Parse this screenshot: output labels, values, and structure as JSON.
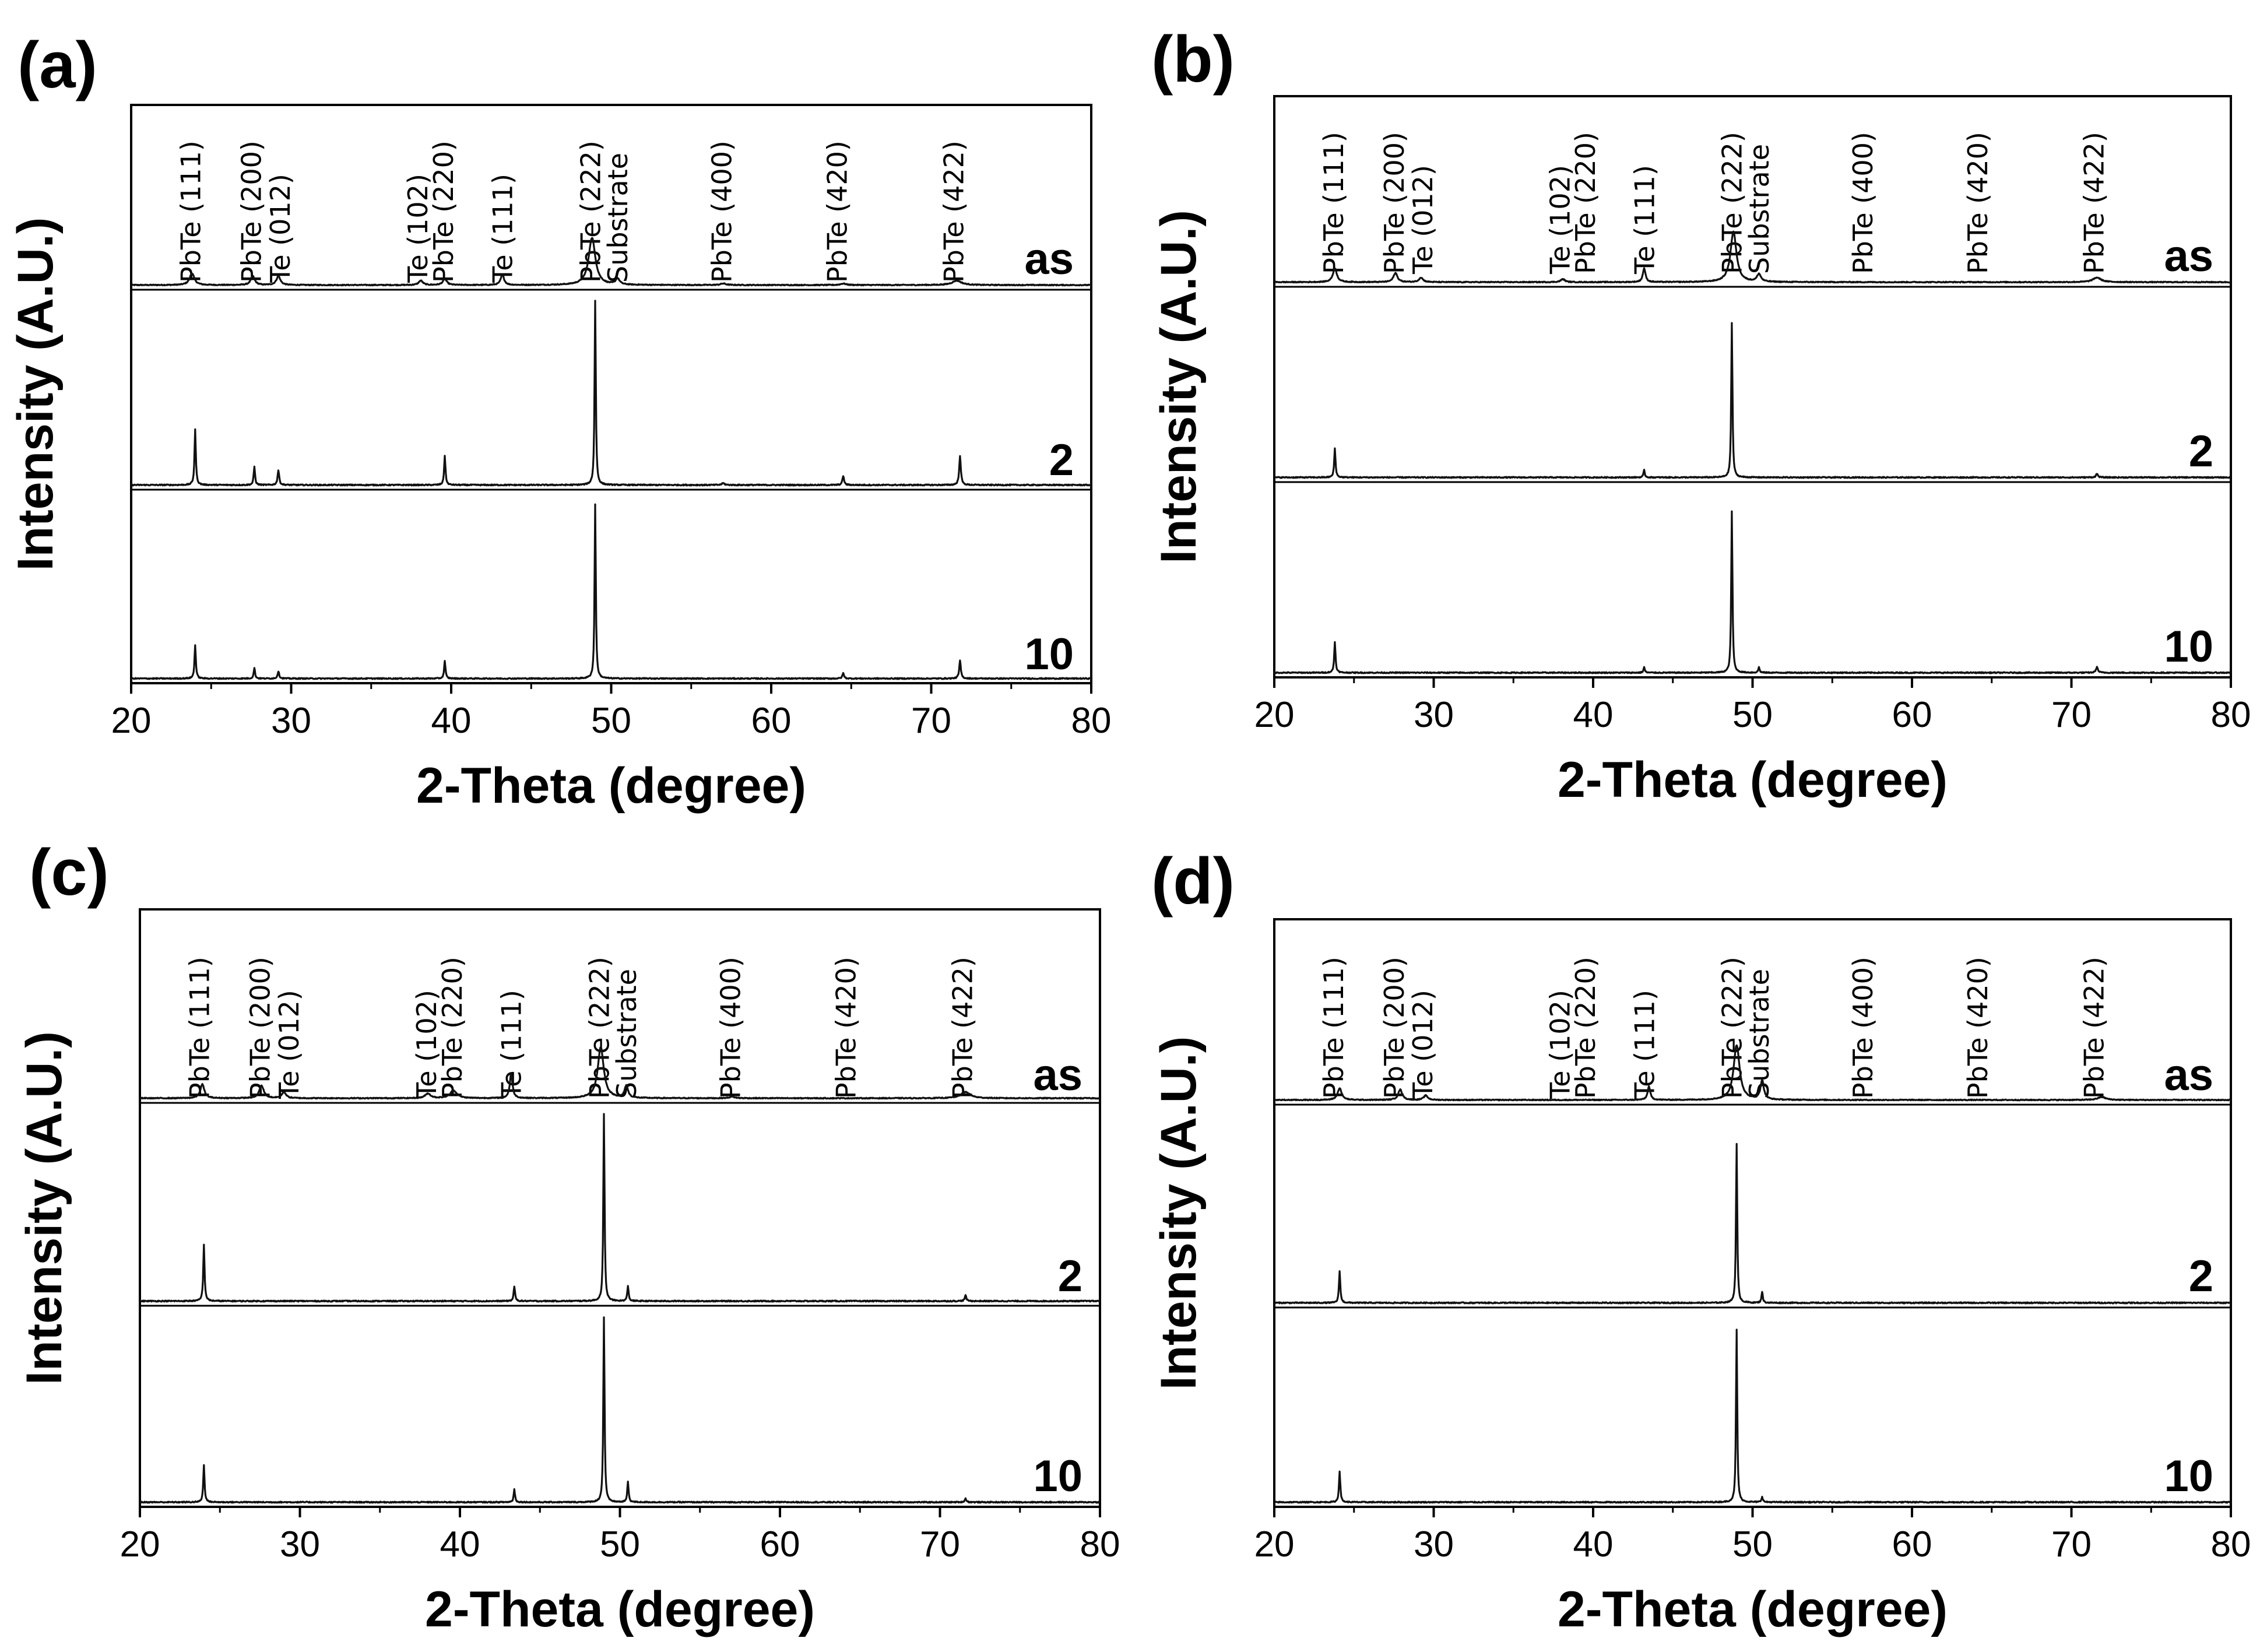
{
  "chart_data": [
    {
      "panel": "(a)",
      "type": "line",
      "xlabel": "2-Theta (degree)",
      "ylabel": "Intensity (A.U.)",
      "xlim": [
        20,
        80
      ],
      "xticks": [
        20,
        30,
        40,
        50,
        60,
        70,
        80
      ],
      "grid": false,
      "peak_labels": [
        {
          "text": "PbTe (111)",
          "x": 23.8
        },
        {
          "text": "PbTe (200)",
          "x": 27.6
        },
        {
          "text": "Te (012)",
          "x": 29.4
        },
        {
          "text": "Te (102)",
          "x": 38.0
        },
        {
          "text": "PbTe (220)",
          "x": 39.6
        },
        {
          "text": "Te (111)",
          "x": 43.3
        },
        {
          "text": "PbTe (222)",
          "x": 48.8
        },
        {
          "text": "Substrate",
          "x": 50.5
        },
        {
          "text": "PbTe (400)",
          "x": 57.0
        },
        {
          "text": "PbTe (420)",
          "x": 64.2
        },
        {
          "text": "PbTe (422)",
          "x": 71.5
        }
      ],
      "series": [
        {
          "name": "as",
          "baseline": 0,
          "peaks": [
            {
              "x": 23.8,
              "h": 0.08,
              "w": 0.35
            },
            {
              "x": 27.6,
              "h": 0.06,
              "w": 0.3
            },
            {
              "x": 29.2,
              "h": 0.06,
              "w": 0.3
            },
            {
              "x": 38.1,
              "h": 0.03,
              "w": 0.3
            },
            {
              "x": 39.6,
              "h": 0.04,
              "w": 0.3
            },
            {
              "x": 43.2,
              "h": 0.07,
              "w": 0.25
            },
            {
              "x": 48.8,
              "h": 0.32,
              "w": 0.5
            },
            {
              "x": 50.4,
              "h": 0.04,
              "w": 0.3
            },
            {
              "x": 57.0,
              "h": 0.01,
              "w": 0.4
            },
            {
              "x": 64.5,
              "h": 0.01,
              "w": 0.4
            },
            {
              "x": 71.6,
              "h": 0.03,
              "w": 0.7
            }
          ]
        },
        {
          "name": "2",
          "baseline": 0,
          "peaks": [
            {
              "x": 24.0,
              "h": 0.3,
              "w": 0.1
            },
            {
              "x": 27.7,
              "h": 0.1,
              "w": 0.1
            },
            {
              "x": 29.2,
              "h": 0.08,
              "w": 0.12
            },
            {
              "x": 39.6,
              "h": 0.16,
              "w": 0.1
            },
            {
              "x": 49.0,
              "h": 1.0,
              "w": 0.09
            },
            {
              "x": 57.0,
              "h": 0.01,
              "w": 0.2
            },
            {
              "x": 64.5,
              "h": 0.05,
              "w": 0.12
            },
            {
              "x": 71.8,
              "h": 0.16,
              "w": 0.12
            }
          ]
        },
        {
          "name": "10",
          "baseline": 0,
          "peaks": [
            {
              "x": 24.0,
              "h": 0.19,
              "w": 0.1
            },
            {
              "x": 27.7,
              "h": 0.06,
              "w": 0.1
            },
            {
              "x": 29.2,
              "h": 0.04,
              "w": 0.12
            },
            {
              "x": 39.6,
              "h": 0.1,
              "w": 0.1
            },
            {
              "x": 49.0,
              "h": 0.98,
              "w": 0.09
            },
            {
              "x": 64.5,
              "h": 0.03,
              "w": 0.12
            },
            {
              "x": 71.8,
              "h": 0.1,
              "w": 0.12
            }
          ]
        }
      ]
    },
    {
      "panel": "(b)",
      "type": "line",
      "xlabel": "2-Theta (degree)",
      "ylabel": "Intensity (A.U.)",
      "xlim": [
        20,
        80
      ],
      "xticks": [
        20,
        30,
        40,
        50,
        60,
        70,
        80
      ],
      "grid": false,
      "peak_labels": [
        {
          "text": "PbTe (111)",
          "x": 23.8
        },
        {
          "text": "PbTe (200)",
          "x": 27.6
        },
        {
          "text": "Te (012)",
          "x": 29.4
        },
        {
          "text": "Te (102)",
          "x": 38.0
        },
        {
          "text": "PbTe (220)",
          "x": 39.6
        },
        {
          "text": "Te (111)",
          "x": 43.3
        },
        {
          "text": "PbTe (222)",
          "x": 48.8
        },
        {
          "text": "Substrate",
          "x": 50.5
        },
        {
          "text": "PbTe (400)",
          "x": 57.0
        },
        {
          "text": "PbTe (420)",
          "x": 64.2
        },
        {
          "text": "PbTe (422)",
          "x": 71.5
        }
      ],
      "series": [
        {
          "name": "as",
          "baseline": 0,
          "peaks": [
            {
              "x": 23.8,
              "h": 0.09,
              "w": 0.3
            },
            {
              "x": 27.6,
              "h": 0.06,
              "w": 0.3
            },
            {
              "x": 29.2,
              "h": 0.03,
              "w": 0.3
            },
            {
              "x": 38.1,
              "h": 0.02,
              "w": 0.3
            },
            {
              "x": 43.2,
              "h": 0.09,
              "w": 0.2
            },
            {
              "x": 48.8,
              "h": 0.33,
              "w": 0.45
            },
            {
              "x": 50.4,
              "h": 0.05,
              "w": 0.3
            },
            {
              "x": 71.6,
              "h": 0.03,
              "w": 0.6
            }
          ]
        },
        {
          "name": "2",
          "baseline": 0,
          "peaks": [
            {
              "x": 23.8,
              "h": 0.16,
              "w": 0.1
            },
            {
              "x": 43.2,
              "h": 0.04,
              "w": 0.1
            },
            {
              "x": 48.7,
              "h": 0.86,
              "w": 0.09
            },
            {
              "x": 71.6,
              "h": 0.02,
              "w": 0.15
            }
          ]
        },
        {
          "name": "10",
          "baseline": 0,
          "peaks": [
            {
              "x": 23.8,
              "h": 0.17,
              "w": 0.1
            },
            {
              "x": 43.2,
              "h": 0.03,
              "w": 0.1
            },
            {
              "x": 48.7,
              "h": 0.9,
              "w": 0.09
            },
            {
              "x": 50.4,
              "h": 0.03,
              "w": 0.1
            },
            {
              "x": 71.6,
              "h": 0.03,
              "w": 0.15
            }
          ]
        }
      ]
    },
    {
      "panel": "(c)",
      "type": "line",
      "xlabel": "2-Theta (degree)",
      "ylabel": "Intensity (A.U.)",
      "xlim": [
        20,
        80
      ],
      "xticks": [
        20,
        30,
        40,
        50,
        60,
        70,
        80
      ],
      "grid": false,
      "peak_labels": [
        {
          "text": "PbTe (111)",
          "x": 23.8
        },
        {
          "text": "PbTe (200)",
          "x": 27.6
        },
        {
          "text": "Te (012)",
          "x": 29.4
        },
        {
          "text": "Te (102)",
          "x": 38.0
        },
        {
          "text": "PbTe (220)",
          "x": 39.6
        },
        {
          "text": "Te (111)",
          "x": 43.3
        },
        {
          "text": "PbTe (222)",
          "x": 48.8
        },
        {
          "text": "Substrate",
          "x": 50.5
        },
        {
          "text": "PbTe (400)",
          "x": 57.0
        },
        {
          "text": "PbTe (420)",
          "x": 64.2
        },
        {
          "text": "PbTe (422)",
          "x": 71.5
        }
      ],
      "series": [
        {
          "name": "as",
          "baseline": 0,
          "peaks": [
            {
              "x": 23.9,
              "h": 0.09,
              "w": 0.3
            },
            {
              "x": 27.6,
              "h": 0.08,
              "w": 0.35
            },
            {
              "x": 29.0,
              "h": 0.04,
              "w": 0.3
            },
            {
              "x": 38.0,
              "h": 0.03,
              "w": 0.4
            },
            {
              "x": 39.6,
              "h": 0.05,
              "w": 0.5
            },
            {
              "x": 43.2,
              "h": 0.16,
              "w": 0.2
            },
            {
              "x": 48.8,
              "h": 0.33,
              "w": 0.45
            },
            {
              "x": 50.4,
              "h": 0.08,
              "w": 0.25
            },
            {
              "x": 57.0,
              "h": 0.01,
              "w": 0.4
            },
            {
              "x": 71.6,
              "h": 0.04,
              "w": 0.7
            }
          ]
        },
        {
          "name": "2",
          "baseline": 0,
          "peaks": [
            {
              "x": 24.0,
              "h": 0.3,
              "w": 0.1
            },
            {
              "x": 43.4,
              "h": 0.08,
              "w": 0.1
            },
            {
              "x": 49.0,
              "h": 1.0,
              "w": 0.09
            },
            {
              "x": 50.5,
              "h": 0.08,
              "w": 0.1
            },
            {
              "x": 71.6,
              "h": 0.03,
              "w": 0.12
            }
          ]
        },
        {
          "name": "10",
          "baseline": 0,
          "peaks": [
            {
              "x": 24.0,
              "h": 0.2,
              "w": 0.1
            },
            {
              "x": 43.4,
              "h": 0.07,
              "w": 0.1
            },
            {
              "x": 49.0,
              "h": 1.0,
              "w": 0.09
            },
            {
              "x": 50.5,
              "h": 0.11,
              "w": 0.1
            },
            {
              "x": 71.6,
              "h": 0.02,
              "w": 0.12
            }
          ]
        }
      ]
    },
    {
      "panel": "(d)",
      "type": "line",
      "xlabel": "2-Theta (degree)",
      "ylabel": "Intensity (A.U.)",
      "xlim": [
        20,
        80
      ],
      "xticks": [
        20,
        30,
        40,
        50,
        60,
        70,
        80
      ],
      "grid": false,
      "peak_labels": [
        {
          "text": "PbTe (111)",
          "x": 23.8
        },
        {
          "text": "PbTe (200)",
          "x": 27.6
        },
        {
          "text": "Te (012)",
          "x": 29.4
        },
        {
          "text": "Te (102)",
          "x": 38.0
        },
        {
          "text": "PbTe (220)",
          "x": 39.6
        },
        {
          "text": "Te (111)",
          "x": 43.3
        },
        {
          "text": "PbTe (222)",
          "x": 48.8
        },
        {
          "text": "Substrate",
          "x": 50.5
        },
        {
          "text": "PbTe (400)",
          "x": 57.0
        },
        {
          "text": "PbTe (420)",
          "x": 64.2
        },
        {
          "text": "PbTe (422)",
          "x": 71.5
        }
      ],
      "series": [
        {
          "name": "as",
          "baseline": 0,
          "peaks": [
            {
              "x": 24.1,
              "h": 0.08,
              "w": 0.3
            },
            {
              "x": 27.9,
              "h": 0.07,
              "w": 0.3
            },
            {
              "x": 29.5,
              "h": 0.03,
              "w": 0.3
            },
            {
              "x": 43.5,
              "h": 0.09,
              "w": 0.2
            },
            {
              "x": 49.0,
              "h": 0.37,
              "w": 0.45
            },
            {
              "x": 50.6,
              "h": 0.13,
              "w": 0.25
            },
            {
              "x": 71.9,
              "h": 0.02,
              "w": 0.6
            }
          ]
        },
        {
          "name": "2",
          "baseline": 0,
          "peaks": [
            {
              "x": 24.1,
              "h": 0.17,
              "w": 0.1
            },
            {
              "x": 49.0,
              "h": 0.85,
              "w": 0.09
            },
            {
              "x": 50.6,
              "h": 0.06,
              "w": 0.1
            }
          ]
        },
        {
          "name": "10",
          "baseline": 0,
          "peaks": [
            {
              "x": 24.1,
              "h": 0.17,
              "w": 0.1
            },
            {
              "x": 49.0,
              "h": 0.94,
              "w": 0.09
            },
            {
              "x": 50.6,
              "h": 0.03,
              "w": 0.1
            }
          ]
        }
      ]
    }
  ]
}
